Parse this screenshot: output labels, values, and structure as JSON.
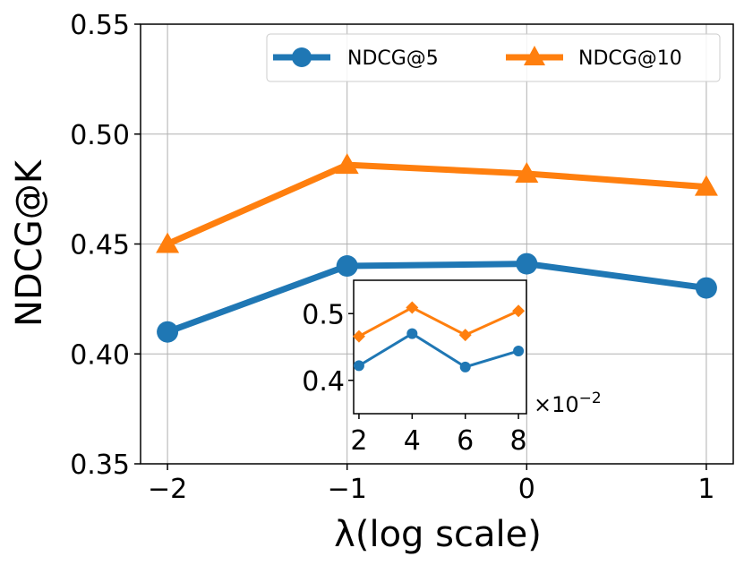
{
  "chart_data": {
    "type": "line",
    "title": "",
    "xlabel": "λ(log scale)",
    "ylabel": "NDCG@K",
    "x": [
      -2,
      -1,
      0,
      1
    ],
    "xticks": [
      -2,
      -1,
      0,
      1
    ],
    "xtick_labels": [
      "−2",
      "−1",
      "0",
      "1"
    ],
    "xlim": [
      -2.15,
      1.15
    ],
    "ylim": [
      0.35,
      0.55
    ],
    "yticks": [
      0.35,
      0.4,
      0.45,
      0.5,
      0.55
    ],
    "ytick_labels": [
      "0.35",
      "0.40",
      "0.45",
      "0.50",
      "0.55"
    ],
    "grid": true,
    "legend_position": "top-right",
    "series": [
      {
        "name": "NDCG@5",
        "color": "#1f77b4",
        "marker": "circle",
        "values": [
          0.41,
          0.44,
          0.441,
          0.43
        ]
      },
      {
        "name": "NDCG@10",
        "color": "#ff7f0e",
        "marker": "triangle",
        "values": [
          0.45,
          0.486,
          0.482,
          0.476
        ]
      }
    ],
    "inset": {
      "type": "line",
      "x": [
        2,
        4,
        6,
        8
      ],
      "xticks": [
        2,
        4,
        6,
        8
      ],
      "xtick_labels": [
        "2",
        "4",
        "6",
        "8"
      ],
      "xlim": [
        1.8,
        8.3
      ],
      "x_offset_label": "×10",
      "x_offset_exponent": "−2",
      "ylim": [
        0.35,
        0.55
      ],
      "yticks": [
        0.4,
        0.5
      ],
      "ytick_labels": [
        "0.4",
        "0.5"
      ],
      "series": [
        {
          "name": "NDCG@5",
          "color": "#1f77b4",
          "marker": "circle",
          "values": [
            0.422,
            0.47,
            0.42,
            0.444
          ]
        },
        {
          "name": "NDCG@10",
          "color": "#ff7f0e",
          "marker": "diamond",
          "values": [
            0.466,
            0.509,
            0.468,
            0.504
          ]
        }
      ]
    }
  }
}
